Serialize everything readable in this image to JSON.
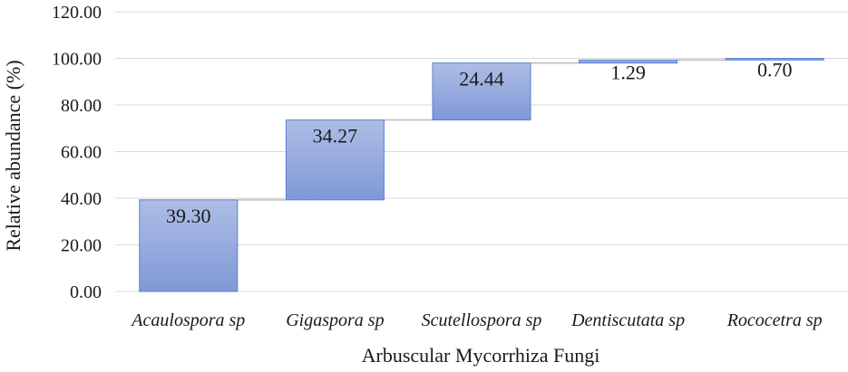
{
  "chart_data": {
    "type": "bar",
    "subtype": "waterfall",
    "categories": [
      "Acaulospora sp",
      "Gigaspora sp",
      "Scutellospora sp",
      "Dentiscutata sp",
      "Rococetra sp"
    ],
    "values": [
      39.3,
      34.27,
      24.44,
      1.29,
      0.7
    ],
    "data_labels": [
      "39.30",
      "34.27",
      "24.44",
      "1.29",
      "0.70"
    ],
    "xlabel": "Arbuscular Mycorrhiza Fungi",
    "ylabel": "Relative abundance (%)",
    "ylim": [
      0,
      120
    ],
    "yticks": [
      "0.00",
      "20.00",
      "40.00",
      "60.00",
      "80.00",
      "100.00",
      "120.00"
    ],
    "grid": true,
    "colors": {
      "bar_top": "#aebde6",
      "bar_bottom": "#7f99d6",
      "bar_edge": "#5b7fcf",
      "connector": "#c8c8c8"
    }
  }
}
